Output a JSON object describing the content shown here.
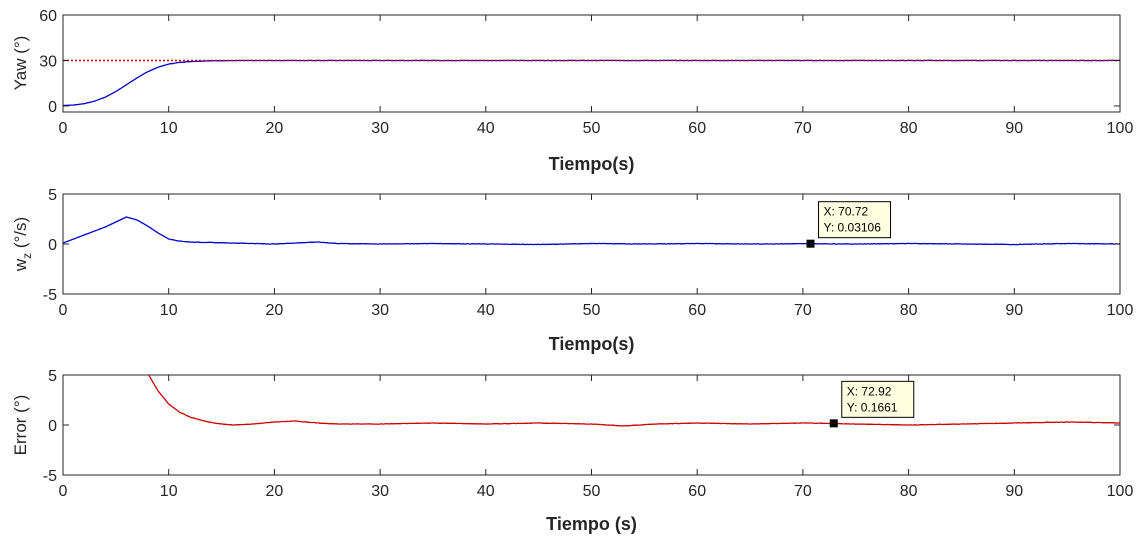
{
  "chart_data": [
    {
      "type": "line",
      "xlabel": "Tiempo(s)",
      "ylabel": "Yaw (°)",
      "xlim": [
        0,
        100
      ],
      "ylim": [
        -4,
        60
      ],
      "xticks": [
        "0",
        "10",
        "20",
        "30",
        "40",
        "50",
        "60",
        "70",
        "80",
        "90",
        "100"
      ],
      "yticks": [
        "0",
        "30",
        "60"
      ],
      "ytick_values": [
        0,
        30,
        60
      ],
      "grid": false,
      "series": [
        {
          "color": "#0000cc",
          "style": "solid",
          "x": [
            0,
            1,
            2,
            3,
            4,
            5,
            6,
            7,
            8,
            9,
            10,
            11,
            12,
            13,
            14,
            15,
            20,
            30,
            40,
            50,
            60,
            70,
            80,
            90,
            100
          ],
          "y": [
            0.3,
            0.6,
            1.5,
            3.2,
            5.8,
            9.5,
            14,
            18.5,
            22.5,
            25.6,
            27.6,
            28.7,
            29.3,
            29.6,
            29.8,
            29.9,
            30,
            30,
            30,
            30,
            30,
            30,
            30,
            30,
            30
          ]
        },
        {
          "color": "#cc0000",
          "style": "dotted",
          "x": [
            0,
            100
          ],
          "y": [
            30,
            30
          ]
        }
      ]
    },
    {
      "type": "line",
      "xlabel": "Tiempo(s)",
      "ylabel": "w",
      "ylabel_sub": "z",
      "ylabel_suffix": "(°/s)",
      "xlim": [
        0,
        100
      ],
      "ylim": [
        -5,
        5
      ],
      "xticks": [
        "0",
        "10",
        "20",
        "30",
        "40",
        "50",
        "60",
        "70",
        "80",
        "90",
        "100"
      ],
      "yticks": [
        "5",
        "0",
        "-5"
      ],
      "ytick_values": [
        5,
        0,
        -5
      ],
      "grid": false,
      "series": [
        {
          "color": "#0000cc",
          "style": "solid",
          "x": [
            0,
            1,
            2,
            3,
            4,
            5,
            6,
            7,
            8,
            9,
            10,
            11,
            12,
            14,
            16,
            18,
            20,
            22,
            24,
            26,
            30,
            35,
            40,
            45,
            50,
            55,
            60,
            65,
            70,
            75,
            80,
            85,
            90,
            95,
            100
          ],
          "y": [
            0.1,
            0.5,
            0.9,
            1.3,
            1.7,
            2.2,
            2.7,
            2.4,
            1.8,
            1.1,
            0.5,
            0.3,
            0.2,
            0.15,
            0.1,
            0.05,
            0.0,
            0.1,
            0.2,
            0.05,
            0.0,
            0.05,
            0.0,
            -0.05,
            0.05,
            0.0,
            0.05,
            0.0,
            0.03,
            0.0,
            0.05,
            0.0,
            -0.05,
            0.05,
            0.0
          ]
        }
      ],
      "annotations": [
        {
          "x": 70.72,
          "y": 0.03106,
          "line1": "X: 70.72",
          "line2": "Y: 0.03106"
        }
      ]
    },
    {
      "type": "line",
      "xlabel": "Tiempo (s)",
      "ylabel": "Error (°)",
      "xlim": [
        0,
        100
      ],
      "ylim": [
        -5,
        5
      ],
      "xticks": [
        "0",
        "10",
        "20",
        "30",
        "40",
        "50",
        "60",
        "70",
        "80",
        "90",
        "100"
      ],
      "yticks": [
        "5",
        "0",
        "-5"
      ],
      "ytick_values": [
        5,
        0,
        -5
      ],
      "grid": false,
      "series": [
        {
          "color": "#cc0000",
          "style": "solid",
          "x": [
            8,
            9,
            10,
            11,
            12,
            13,
            14,
            15,
            16,
            18,
            20,
            22,
            24,
            26,
            30,
            35,
            40,
            45,
            50,
            53,
            56,
            60,
            65,
            70,
            75,
            80,
            85,
            90,
            95,
            100
          ],
          "y": [
            5.2,
            3.4,
            2.1,
            1.3,
            0.8,
            0.5,
            0.25,
            0.1,
            0.0,
            0.1,
            0.3,
            0.4,
            0.2,
            0.1,
            0.1,
            0.2,
            0.1,
            0.2,
            0.1,
            -0.1,
            0.1,
            0.2,
            0.1,
            0.2,
            0.1,
            0.0,
            0.1,
            0.2,
            0.3,
            0.2
          ]
        }
      ],
      "annotations": [
        {
          "x": 72.92,
          "y": 0.1661,
          "line1": "X: 72.92",
          "line2": "Y: 0.1661"
        }
      ]
    }
  ]
}
